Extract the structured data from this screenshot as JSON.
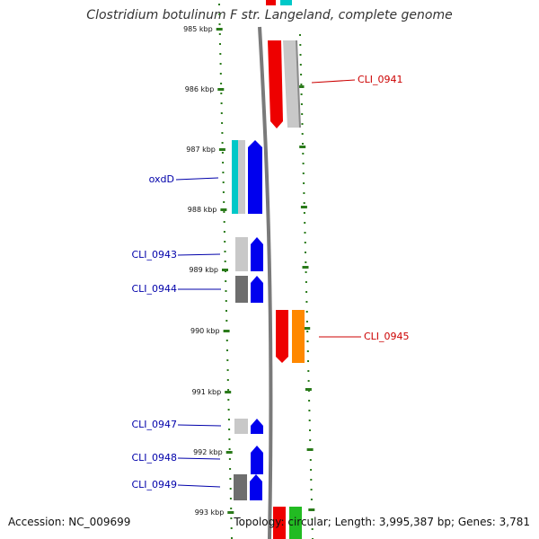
{
  "title": "Clostridium botulinum F str. Langeland, complete genome",
  "footer": {
    "accession": "Accession: NC_009699",
    "stats": "Topology: circular; Length: 3,995,387 bp; Genes: 3,781"
  },
  "axis": {
    "ticks": [
      "985 kbp",
      "986 kbp",
      "987 kbp",
      "988 kbp",
      "989 kbp",
      "990 kbp",
      "991 kbp",
      "992 kbp",
      "993 kbp"
    ]
  },
  "colors": {
    "label_left": "#0000aa",
    "label_right": "#cc0000",
    "tick_green": "#2a7a1a",
    "blue": "#0000ee",
    "red": "#ee0000",
    "orange": "#ff8800",
    "cyan": "#00c8c8",
    "light_gray": "#c8c8c8",
    "dark_gray": "#6e6e6e",
    "green": "#22bb22"
  },
  "genes": [
    {
      "label": "CLI_0941",
      "side": "right"
    },
    {
      "label": "oxdD",
      "side": "left"
    },
    {
      "label": "CLI_0943",
      "side": "left"
    },
    {
      "label": "CLI_0944",
      "side": "left"
    },
    {
      "label": "CLI_0945",
      "side": "right"
    },
    {
      "label": "CLI_0947",
      "side": "left"
    },
    {
      "label": "CLI_0948",
      "side": "left"
    },
    {
      "label": "CLI_0949",
      "side": "left"
    }
  ]
}
